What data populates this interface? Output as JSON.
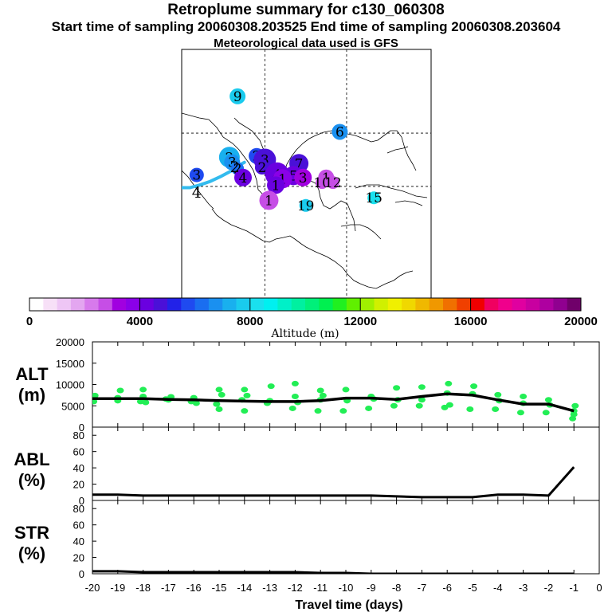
{
  "header": {
    "title": "Retroplume summary for c130_060308",
    "sampling": "Start time of sampling 20060308.203525     End time of sampling 20060308.203604",
    "met": "Meteorological data used is GFS"
  },
  "map": {
    "clusters": [
      {
        "label": "9",
        "lon": -93.0,
        "lat": 29.8,
        "alt": 7500,
        "size": 10
      },
      {
        "label": "6",
        "lon": -78.0,
        "lat": 24.2,
        "alt": 6800,
        "size": 10
      },
      {
        "label": "2",
        "lon": -94.2,
        "lat": 20.2,
        "alt": 7300,
        "size": 13
      },
      {
        "label": "3",
        "lon": -93.8,
        "lat": 19.4,
        "alt": 6500,
        "size": 10
      },
      {
        "label": "2",
        "lon": -90.2,
        "lat": 20.4,
        "alt": 5500,
        "size": 10
      },
      {
        "label": "3",
        "lon": -89.0,
        "lat": 19.8,
        "alt": 4800,
        "size": 14
      },
      {
        "label": "2",
        "lon": -89.4,
        "lat": 18.6,
        "alt": 4600,
        "size": 9
      },
      {
        "label": "2",
        "lon": -93.0,
        "lat": 18.4,
        "alt": 6200,
        "size": 8
      },
      {
        "label": "3",
        "lon": -99.0,
        "lat": 17.4,
        "alt": 5600,
        "size": 9
      },
      {
        "label": "4",
        "lon": -92.2,
        "lat": 17.0,
        "alt": 4200,
        "size": 11
      },
      {
        "label": "7",
        "lon": -84.0,
        "lat": 19.2,
        "alt": 4700,
        "size": 12
      },
      {
        "label": "4",
        "lon": -87.2,
        "lat": 17.5,
        "alt": 4400,
        "size": 15
      },
      {
        "label": "5",
        "lon": -84.8,
        "lat": 17.3,
        "alt": 4400,
        "size": 12
      },
      {
        "label": "3",
        "lon": -83.4,
        "lat": 17.0,
        "alt": 3000,
        "size": 11
      },
      {
        "label": "1",
        "lon": -86.4,
        "lat": 16.8,
        "alt": 3600,
        "size": 12
      },
      {
        "label": "1",
        "lon": -87.4,
        "lat": 15.8,
        "alt": 4300,
        "size": 11
      },
      {
        "label": "1",
        "lon": -80.0,
        "lat": 17.0,
        "alt": 2600,
        "size": 10
      },
      {
        "label": "10",
        "lon": -80.6,
        "lat": 16.2,
        "alt": 2600,
        "size": 8
      },
      {
        "label": "12",
        "lon": -79.0,
        "lat": 16.2,
        "alt": 2600,
        "size": 8
      },
      {
        "label": "1",
        "lon": -88.4,
        "lat": 13.4,
        "alt": 2700,
        "size": 12
      },
      {
        "label": "19",
        "lon": -83.0,
        "lat": 12.6,
        "alt": 7600,
        "size": 8
      },
      {
        "label": "15",
        "lon": -73.0,
        "lat": 13.8,
        "alt": 8400,
        "size": 8
      }
    ],
    "release_labels": [
      {
        "label": "4",
        "lon": -99.0,
        "lat": 14.6
      },
      {
        "label": "2",
        "lon": -93.4,
        "lat": 18.6
      }
    ],
    "trajectory_lon": [
      -101.2,
      -100.0,
      -98.6,
      -97.0,
      -95.4,
      -94.0,
      -93.0,
      -92.0
    ],
    "trajectory_lat": [
      15.4,
      15.4,
      15.8,
      16.4,
      17.2,
      18.0,
      18.8,
      19.4
    ],
    "trajectory_color": "#33bbee",
    "x_range": [
      -101.2,
      -64.6
    ],
    "y_range": [
      -2.0,
      37.2
    ],
    "gridlines_lon": [
      -89.0,
      -77.0
    ],
    "gridlines_lat": [
      24.0,
      15.6
    ]
  },
  "colorbar": {
    "min": 0,
    "max": 20000,
    "tick_labels": [
      "0",
      "4000",
      "8000",
      "12000",
      "16000",
      "20000"
    ],
    "label": "Altitude (m)",
    "colors": [
      "#ffffff",
      "#f7e0f7",
      "#eec6f5",
      "#e3a6f0",
      "#d77aec",
      "#c64ee6",
      "#a100e0",
      "#8a00e8",
      "#6a00e0",
      "#4a10d8",
      "#2222e8",
      "#1f4af0",
      "#1a6ef0",
      "#1a90f0",
      "#19b0ee",
      "#1acbee",
      "#1ae0ee",
      "#00f0f0",
      "#00f0c8",
      "#00f0a0",
      "#00f07a",
      "#00f050",
      "#20f020",
      "#60f000",
      "#a0f000",
      "#d0f000",
      "#f0f000",
      "#f0d800",
      "#f0b800",
      "#f09800",
      "#f07000",
      "#f04000",
      "#f00000",
      "#f00060",
      "#f0008c",
      "#e000a0",
      "#c800a0",
      "#ae00a0",
      "#900090",
      "#70006a"
    ]
  },
  "chart_data": [
    {
      "type": "scatter",
      "name": "ALT",
      "ylabel": "ALT\n(m)",
      "ylabel_line1": "ALT",
      "ylabel_line2": "(m)",
      "ylim": [
        0,
        20000
      ],
      "yticks": [
        0,
        5000,
        10000,
        15000,
        20000
      ],
      "xlim": [
        -20,
        0
      ],
      "points_color": "#22ee55",
      "points": [
        [
          -20.0,
          6800
        ],
        [
          -20.0,
          7200
        ],
        [
          -19.95,
          6000
        ],
        [
          -19.9,
          7400
        ],
        [
          -19.0,
          6200
        ],
        [
          -19.0,
          6900
        ],
        [
          -18.9,
          8600
        ],
        [
          -18.1,
          6000
        ],
        [
          -18.0,
          8800
        ],
        [
          -18.0,
          7200
        ],
        [
          -17.9,
          5800
        ],
        [
          -17.1,
          6600
        ],
        [
          -17.0,
          6400
        ],
        [
          -16.9,
          7100
        ],
        [
          -16.1,
          6000
        ],
        [
          -16.0,
          6900
        ],
        [
          -15.9,
          5600
        ],
        [
          -15.1,
          5400
        ],
        [
          -15.0,
          4200
        ],
        [
          -15.0,
          8800
        ],
        [
          -14.9,
          7600
        ],
        [
          -14.1,
          6400
        ],
        [
          -14.0,
          3800
        ],
        [
          -14.0,
          8800
        ],
        [
          -13.9,
          7400
        ],
        [
          -13.1,
          5600
        ],
        [
          -13.0,
          6200
        ],
        [
          -12.95,
          9600
        ],
        [
          -12.1,
          4400
        ],
        [
          -12.0,
          7200
        ],
        [
          -12.0,
          10200
        ],
        [
          -11.9,
          5800
        ],
        [
          -11.1,
          3800
        ],
        [
          -11.0,
          6400
        ],
        [
          -11.0,
          8600
        ],
        [
          -10.9,
          7400
        ],
        [
          -10.1,
          3800
        ],
        [
          -10.0,
          8800
        ],
        [
          -9.95,
          6200
        ],
        [
          -9.1,
          4400
        ],
        [
          -9.0,
          7200
        ],
        [
          -8.9,
          6600
        ],
        [
          -8.1,
          5000
        ],
        [
          -8.0,
          9200
        ],
        [
          -7.95,
          6400
        ],
        [
          -7.1,
          5000
        ],
        [
          -7.0,
          6400
        ],
        [
          -7.0,
          9400
        ],
        [
          -6.1,
          4600
        ],
        [
          -6.0,
          8000
        ],
        [
          -5.95,
          10200
        ],
        [
          -5.9,
          5200
        ],
        [
          -5.1,
          4200
        ],
        [
          -5.0,
          7800
        ],
        [
          -4.95,
          9600
        ],
        [
          -4.1,
          4200
        ],
        [
          -4.0,
          7600
        ],
        [
          -3.95,
          6200
        ],
        [
          -3.1,
          3400
        ],
        [
          -3.0,
          5600
        ],
        [
          -3.0,
          7200
        ],
        [
          -2.1,
          3400
        ],
        [
          -2.0,
          6400
        ],
        [
          -1.95,
          5200
        ],
        [
          -1.05,
          2000
        ],
        [
          -1.0,
          3800
        ],
        [
          -0.95,
          5000
        ],
        [
          -1.0,
          3000
        ]
      ],
      "mean_x": [
        -20,
        -19,
        -18,
        -17,
        -16,
        -15,
        -14,
        -13,
        -12,
        -11,
        -10,
        -9,
        -8,
        -7,
        -6,
        -5,
        -4,
        -3,
        -2,
        -1
      ],
      "mean_y": [
        6700,
        6700,
        6700,
        6500,
        6400,
        6200,
        6100,
        6000,
        6000,
        6200,
        6800,
        6800,
        6500,
        7200,
        7800,
        7500,
        6400,
        5400,
        5400,
        3800
      ]
    },
    {
      "type": "line",
      "name": "ABL",
      "ylabel": "ABL\n(%)",
      "ylabel_line1": "ABL",
      "ylabel_line2": "(%)",
      "ylim": [
        0,
        90
      ],
      "yticks": [
        0,
        20,
        40,
        60,
        80
      ],
      "xlim": [
        -20,
        0
      ],
      "x": [
        -20,
        -19,
        -18,
        -17,
        -16,
        -15,
        -14,
        -13,
        -12,
        -11,
        -10,
        -9,
        -8,
        -7,
        -6,
        -5,
        -4,
        -3,
        -2,
        -1
      ],
      "y": [
        7,
        7,
        6,
        6,
        6,
        6,
        6,
        6,
        6,
        6,
        6,
        6,
        5,
        4,
        4,
        4,
        7,
        7,
        6,
        41
      ]
    },
    {
      "type": "line",
      "name": "STR",
      "ylabel": "STR\n(%)",
      "ylabel_line1": "STR",
      "ylabel_line2": "(%)",
      "ylim": [
        0,
        90
      ],
      "yticks": [
        0,
        20,
        40,
        60,
        80
      ],
      "xlim": [
        -20,
        0
      ],
      "xlabel": "Travel time (days)",
      "xtick_values": [
        -20,
        -19,
        -18,
        -17,
        -16,
        -15,
        -14,
        -13,
        -12,
        -11,
        -10,
        -9,
        -8,
        -7,
        -6,
        -5,
        -4,
        -3,
        -2,
        -1,
        0
      ],
      "xtick_labels": [
        "-20",
        "-19",
        "-18",
        "-17",
        "-16",
        "-15",
        "-14",
        "-13",
        "-12",
        "-11",
        "-10",
        "-9",
        "-8",
        "-7",
        "-6",
        "-5",
        "-4",
        "-3",
        "-2",
        "-1",
        "0"
      ],
      "x": [
        -20,
        -19,
        -18,
        -17,
        -16,
        -15,
        -14,
        -13,
        -12,
        -11,
        -10,
        -9,
        -8,
        -7,
        -6,
        -5,
        -4,
        -3,
        -2,
        -1
      ],
      "y": [
        3,
        3,
        2,
        2,
        2,
        2,
        2,
        2,
        2,
        1,
        1,
        0,
        0,
        0,
        0,
        0,
        0,
        0,
        0,
        0
      ]
    }
  ]
}
